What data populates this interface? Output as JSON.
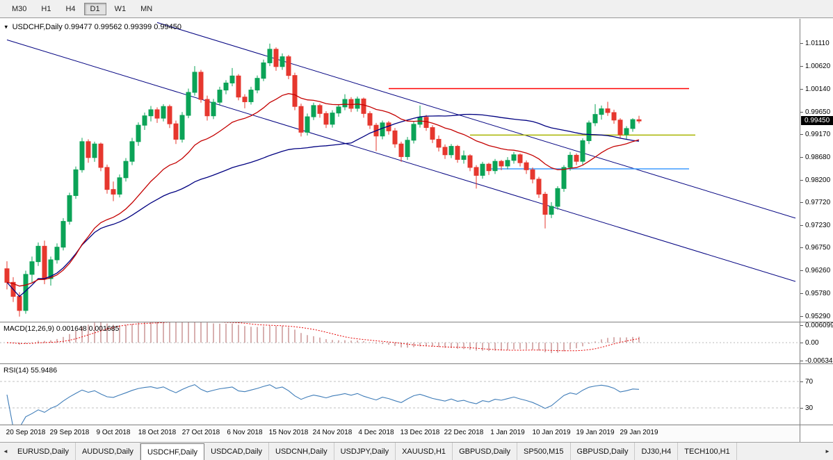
{
  "toolbar": {
    "timeframes": [
      {
        "label": "M30",
        "active": false
      },
      {
        "label": "H1",
        "active": false
      },
      {
        "label": "H4",
        "active": false
      },
      {
        "label": "D1",
        "active": true
      },
      {
        "label": "W1",
        "active": false
      },
      {
        "label": "MN",
        "active": false
      }
    ]
  },
  "chart": {
    "title_symbol": "USDCHF,Daily",
    "title_ohlc": "0.99477 0.99562 0.99399 0.99450",
    "menu_icon": "▾",
    "current_price": "0.99450",
    "price_labels": [
      "1.01110",
      "1.00620",
      "1.00140",
      "0.99650",
      "0.99170",
      "0.98680",
      "0.98200",
      "0.97720",
      "0.97230",
      "0.96750",
      "0.96260",
      "0.95780",
      "0.95290"
    ],
    "scale": {
      "price_top": 1.016,
      "price_bottom": 0.952
    },
    "colors": {
      "up": "#0ba357",
      "down": "#e6372e",
      "ma_fast": "#c40000",
      "ma_slow": "#000080",
      "channel": "#000080"
    },
    "hlines": [
      {
        "price": 1.0014,
        "color": "#ff0000",
        "from_bar": 61,
        "to_bar": 109
      },
      {
        "price": 0.9915,
        "color": "#a8b400",
        "from_bar": 74,
        "to_bar": 110
      },
      {
        "price": 0.9843,
        "color": "#3e9bff",
        "from_bar": 77,
        "to_bar": 109
      }
    ],
    "trendlines": [
      {
        "from_bar": 24,
        "from_price": 1.0155,
        "to_bar": 126,
        "to_price": 0.9738
      },
      {
        "from_bar": 0,
        "from_price": 1.0118,
        "to_bar": 126,
        "to_price": 0.9603
      }
    ],
    "date_labels": [
      {
        "label": "20 Sep 2018",
        "bar": 3
      },
      {
        "label": "29 Sep 2018",
        "bar": 10
      },
      {
        "label": "9 Oct 2018",
        "bar": 17
      },
      {
        "label": "18 Oct 2018",
        "bar": 24
      },
      {
        "label": "27 Oct 2018",
        "bar": 31
      },
      {
        "label": "6 Nov 2018",
        "bar": 38
      },
      {
        "label": "15 Nov 2018",
        "bar": 45
      },
      {
        "label": "24 Nov 2018",
        "bar": 52
      },
      {
        "label": "4 Dec 2018",
        "bar": 59
      },
      {
        "label": "13 Dec 2018",
        "bar": 66
      },
      {
        "label": "22 Dec 2018",
        "bar": 73
      },
      {
        "label": "1 Jan 2019",
        "bar": 80
      },
      {
        "label": "10 Jan 2019",
        "bar": 87
      },
      {
        "label": "19 Jan 2019",
        "bar": 94
      },
      {
        "label": "29 Jan 2019",
        "bar": 101
      }
    ],
    "candles": [
      [
        0.963,
        0.9646,
        0.9586,
        0.9601
      ],
      [
        0.9601,
        0.9612,
        0.9559,
        0.9571
      ],
      [
        0.9571,
        0.958,
        0.9528,
        0.9541
      ],
      [
        0.9541,
        0.9626,
        0.9534,
        0.9618
      ],
      [
        0.9618,
        0.9656,
        0.9601,
        0.9645
      ],
      [
        0.9645,
        0.9686,
        0.9636,
        0.9678
      ],
      [
        0.9678,
        0.969,
        0.9597,
        0.9609
      ],
      [
        0.9609,
        0.9656,
        0.9594,
        0.9649
      ],
      [
        0.9649,
        0.9684,
        0.9641,
        0.9676
      ],
      [
        0.9676,
        0.9738,
        0.9669,
        0.9731
      ],
      [
        0.9731,
        0.9792,
        0.9724,
        0.9786
      ],
      [
        0.9786,
        0.9848,
        0.9779,
        0.9841
      ],
      [
        0.9841,
        0.9909,
        0.9835,
        0.9901
      ],
      [
        0.9901,
        0.9906,
        0.9856,
        0.9867
      ],
      [
        0.9867,
        0.9901,
        0.9858,
        0.9896
      ],
      [
        0.9896,
        0.9899,
        0.9838,
        0.9846
      ],
      [
        0.9846,
        0.9852,
        0.979,
        0.9799
      ],
      [
        0.9799,
        0.9816,
        0.9774,
        0.9789
      ],
      [
        0.9789,
        0.9831,
        0.9782,
        0.9824
      ],
      [
        0.9824,
        0.9866,
        0.9816,
        0.9859
      ],
      [
        0.9859,
        0.9909,
        0.9851,
        0.9901
      ],
      [
        0.9901,
        0.9942,
        0.9892,
        0.9936
      ],
      [
        0.9936,
        0.9963,
        0.9926,
        0.9956
      ],
      [
        0.9956,
        0.9977,
        0.9944,
        0.9969
      ],
      [
        0.9969,
        0.9974,
        0.9941,
        0.9951
      ],
      [
        0.9951,
        0.9981,
        0.9944,
        0.9976
      ],
      [
        0.9976,
        0.998,
        0.993,
        0.9939
      ],
      [
        0.9939,
        0.9946,
        0.9896,
        0.9906
      ],
      [
        0.9906,
        0.9964,
        0.9899,
        0.9957
      ],
      [
        0.9957,
        1.0014,
        0.9951,
        1.0006
      ],
      [
        1.0006,
        1.0062,
        0.9999,
        1.0049
      ],
      [
        1.0049,
        1.0054,
        0.9984,
        0.9991
      ],
      [
        0.9991,
        0.9999,
        0.9946,
        0.9956
      ],
      [
        0.9956,
        0.9992,
        0.9949,
        0.9985
      ],
      [
        0.9985,
        1.0018,
        0.9978,
        1.0011
      ],
      [
        1.0011,
        1.0032,
        1.0002,
        1.0026
      ],
      [
        1.0026,
        1.0058,
        1.0019,
        1.0041
      ],
      [
        1.0041,
        1.0045,
        0.9989,
        0.9996
      ],
      [
        0.9996,
        1.0002,
        0.9972,
        0.9986
      ],
      [
        0.9986,
        1.0018,
        0.998,
        1.0011
      ],
      [
        1.0011,
        1.0042,
        1.0004,
        1.0036
      ],
      [
        1.0036,
        1.0076,
        1.003,
        1.0069
      ],
      [
        1.0069,
        1.011,
        1.0062,
        1.0098
      ],
      [
        1.0098,
        1.0102,
        1.0052,
        1.0061
      ],
      [
        1.0061,
        1.0089,
        1.0054,
        1.0082
      ],
      [
        1.0082,
        1.0086,
        1.0034,
        1.0042
      ],
      [
        1.0042,
        1.0048,
        0.9968,
        0.9976
      ],
      [
        0.9976,
        0.9982,
        0.9912,
        0.9921
      ],
      [
        0.9921,
        0.9961,
        0.9914,
        0.9954
      ],
      [
        0.9954,
        0.9984,
        0.9947,
        0.9978
      ],
      [
        0.9978,
        0.9982,
        0.9952,
        0.9961
      ],
      [
        0.9961,
        0.9966,
        0.993,
        0.9938
      ],
      [
        0.9938,
        0.9968,
        0.9931,
        0.9962
      ],
      [
        0.9962,
        0.9981,
        0.9954,
        0.9975
      ],
      [
        0.9975,
        1.0002,
        0.9968,
        0.9991
      ],
      [
        0.9991,
        0.9996,
        0.9964,
        0.9972
      ],
      [
        0.9972,
        0.9997,
        0.9965,
        0.9992
      ],
      [
        0.9992,
        0.9995,
        0.9952,
        0.9961
      ],
      [
        0.9961,
        0.9966,
        0.9928,
        0.9936
      ],
      [
        0.9936,
        0.9941,
        0.9881,
        0.9913
      ],
      [
        0.9913,
        0.9946,
        0.9906,
        0.9941
      ],
      [
        0.9941,
        0.9945,
        0.9916,
        0.9924
      ],
      [
        0.9924,
        0.993,
        0.9888,
        0.9896
      ],
      [
        0.9896,
        0.9901,
        0.9858,
        0.9869
      ],
      [
        0.9869,
        0.9911,
        0.9862,
        0.9904
      ],
      [
        0.9904,
        0.9944,
        0.9897,
        0.9938
      ],
      [
        0.9938,
        0.9978,
        0.9931,
        0.9953
      ],
      [
        0.9953,
        0.9958,
        0.9924,
        0.9931
      ],
      [
        0.9931,
        0.9936,
        0.9898,
        0.9906
      ],
      [
        0.9906,
        0.9914,
        0.988,
        0.9889
      ],
      [
        0.9889,
        0.9895,
        0.9864,
        0.9873
      ],
      [
        0.9873,
        0.9896,
        0.9866,
        0.9891
      ],
      [
        0.9891,
        0.9894,
        0.9856,
        0.9863
      ],
      [
        0.9863,
        0.9882,
        0.9854,
        0.9871
      ],
      [
        0.9871,
        0.9874,
        0.9838,
        0.9846
      ],
      [
        0.9846,
        0.9851,
        0.9801,
        0.9829
      ],
      [
        0.9829,
        0.9858,
        0.9822,
        0.9853
      ],
      [
        0.9853,
        0.9856,
        0.983,
        0.9839
      ],
      [
        0.9839,
        0.9864,
        0.9832,
        0.9859
      ],
      [
        0.9859,
        0.9862,
        0.984,
        0.9849
      ],
      [
        0.9849,
        0.9868,
        0.9842,
        0.9861
      ],
      [
        0.9861,
        0.9879,
        0.9854,
        0.9873
      ],
      [
        0.9873,
        0.9876,
        0.9848,
        0.9856
      ],
      [
        0.9856,
        0.9861,
        0.9832,
        0.9841
      ],
      [
        0.9841,
        0.9846,
        0.9812,
        0.9821
      ],
      [
        0.9821,
        0.9826,
        0.9781,
        0.9789
      ],
      [
        0.9789,
        0.9794,
        0.9716,
        0.9746
      ],
      [
        0.9746,
        0.9772,
        0.9738,
        0.9763
      ],
      [
        0.9763,
        0.9806,
        0.9756,
        0.9801
      ],
      [
        0.9801,
        0.9851,
        0.9794,
        0.9846
      ],
      [
        0.9846,
        0.9879,
        0.9839,
        0.9872
      ],
      [
        0.9872,
        0.9876,
        0.9851,
        0.9859
      ],
      [
        0.9859,
        0.9908,
        0.9852,
        0.9903
      ],
      [
        0.9903,
        0.9946,
        0.9896,
        0.9941
      ],
      [
        0.9941,
        0.9981,
        0.9934,
        0.9959
      ],
      [
        0.9959,
        0.9978,
        0.9948,
        0.9971
      ],
      [
        0.9971,
        0.9986,
        0.9956,
        0.9963
      ],
      [
        0.9963,
        0.9969,
        0.9939,
        0.9947
      ],
      [
        0.9947,
        0.9951,
        0.9908,
        0.9916
      ],
      [
        0.9916,
        0.9934,
        0.9905,
        0.9929
      ],
      [
        0.9929,
        0.9951,
        0.9922,
        0.9948
      ],
      [
        0.99477,
        0.99562,
        0.99399,
        0.9945
      ]
    ]
  },
  "macd": {
    "label": "MACD(12,26,9)",
    "values": "0.001648 0.001685",
    "scale_labels": [
      "0.006099",
      "0.00",
      "-0.006347"
    ],
    "range_top": 0.0061,
    "range_bottom": -0.0063,
    "hist_color": "#b26262",
    "signal_color": "#e60000"
  },
  "rsi": {
    "label": "RSI(14)",
    "value": "55.9486",
    "levels": [
      "70",
      "30"
    ],
    "line_color": "#3e7cb8"
  },
  "tabs": {
    "left_arrow": "◄",
    "right_arrow": "►",
    "items": [
      {
        "label": "EURUSD,Daily",
        "active": false
      },
      {
        "label": "AUDUSD,Daily",
        "active": false
      },
      {
        "label": "USDCHF,Daily",
        "active": true
      },
      {
        "label": "USDCAD,Daily",
        "active": false
      },
      {
        "label": "USDCNH,Daily",
        "active": false
      },
      {
        "label": "USDJPY,Daily",
        "active": false
      },
      {
        "label": "XAUUSD,H1",
        "active": false
      },
      {
        "label": "GBPUSD,Daily",
        "active": false
      },
      {
        "label": "SP500,M15",
        "active": false
      },
      {
        "label": "GBPUSD,Daily",
        "active": false
      },
      {
        "label": "DJ30,H4",
        "active": false
      },
      {
        "label": "TECH100,H1",
        "active": false
      }
    ]
  }
}
